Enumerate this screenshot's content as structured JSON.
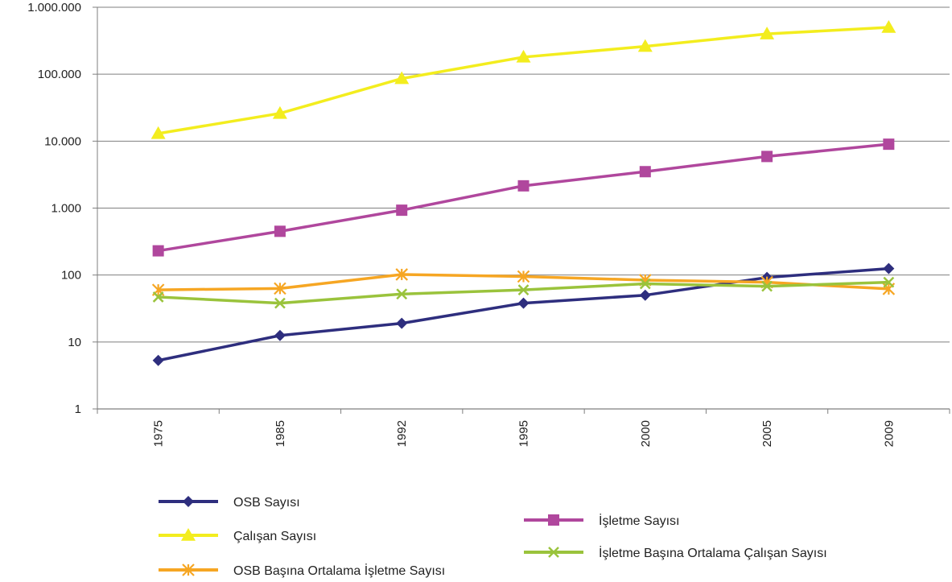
{
  "chart_data": {
    "type": "line",
    "y_scale": "log",
    "ylim": [
      1,
      1000000
    ],
    "y_ticks": [
      1,
      10,
      100,
      1000,
      10000,
      100000,
      1000000
    ],
    "y_tick_labels": [
      "1",
      "10",
      "100",
      "1.000",
      "10.000",
      "100.000",
      "1.000.000"
    ],
    "grid": "horizontal",
    "legend_position": "bottom",
    "categories": [
      "1975",
      "1985",
      "1992",
      "1995",
      "2000",
      "2005",
      "2009"
    ],
    "series": [
      {
        "name": "OSB Sayısı",
        "color": "#2e2e7e",
        "marker": "diamond",
        "values": [
          5.3,
          12.5,
          19,
          38,
          50,
          92,
          125
        ]
      },
      {
        "name": "Çalışan Sayısı",
        "color": "#f3ed1e",
        "marker": "triangle",
        "values": [
          13000,
          26000,
          86000,
          180000,
          260000,
          400000,
          500000
        ]
      },
      {
        "name": "OSB Başına Ortalama İşletme Sayısı",
        "color": "#f6a623",
        "marker": "asterisk",
        "values": [
          60,
          63,
          102,
          95,
          84,
          78,
          62
        ]
      },
      {
        "name": "İşletme Sayısı",
        "color": "#b0479d",
        "marker": "square",
        "values": [
          230,
          450,
          930,
          2150,
          3500,
          5900,
          9000
        ]
      },
      {
        "name": "İşletme Başına Ortalama Çalışan Sayısı",
        "color": "#9ac33c",
        "marker": "x",
        "values": [
          47,
          38,
          52,
          60,
          74,
          68,
          78
        ]
      }
    ]
  }
}
